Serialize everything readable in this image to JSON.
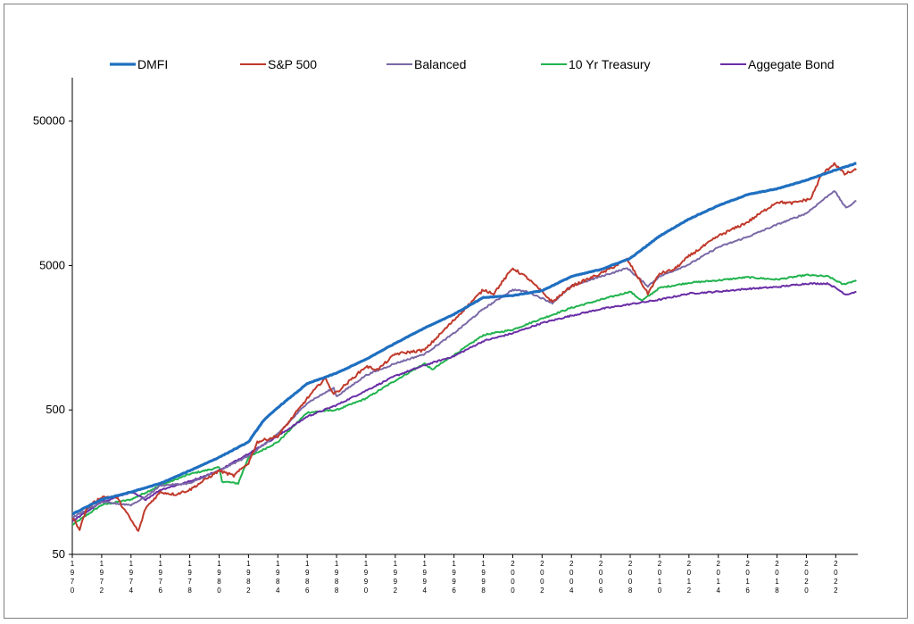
{
  "chart_data": {
    "type": "line",
    "title": "",
    "xlabel": "",
    "ylabel": "",
    "y_scale": "log",
    "ylim": [
      50,
      100000
    ],
    "xlim": [
      1970,
      2023.5
    ],
    "yticks": [
      50,
      500,
      5000,
      50000
    ],
    "ytick_labels": [
      "50",
      "500",
      "5000",
      "50000"
    ],
    "xticks": [
      1970,
      1972,
      1974,
      1976,
      1978,
      1980,
      1982,
      1984,
      1986,
      1988,
      1990,
      1992,
      1994,
      1996,
      1998,
      2000,
      2002,
      2004,
      2006,
      2008,
      2010,
      2012,
      2014,
      2016,
      2018,
      2020,
      2022
    ],
    "xtick_labels": [
      "1970",
      "1972",
      "1974",
      "1976",
      "1978",
      "1980",
      "1982",
      "1984",
      "1986",
      "1988",
      "1990",
      "1992",
      "1994",
      "1996",
      "1998",
      "2000",
      "2002",
      "2004",
      "2006",
      "2008",
      "2010",
      "2012",
      "2014",
      "2016",
      "2018",
      "2020",
      "2022"
    ],
    "grid": false,
    "legend_position": "top",
    "series": [
      {
        "name": "DMFI",
        "color": "#1f6fc0",
        "x": [
          1970,
          1972,
          1974,
          1976,
          1978,
          1980,
          1982,
          1983,
          1984,
          1986,
          1988,
          1990,
          1992,
          1994,
          1996,
          1998,
          2000,
          2002,
          2004,
          2006,
          2008,
          2010,
          2012,
          2014,
          2016,
          2018,
          2020,
          2022,
          2023.4
        ],
        "y": [
          95,
          120,
          135,
          155,
          190,
          235,
          300,
          420,
          520,
          760,
          900,
          1120,
          1450,
          1850,
          2300,
          3000,
          3100,
          3350,
          4200,
          4700,
          5600,
          8000,
          10500,
          13000,
          15500,
          17000,
          19500,
          23000,
          25500
        ]
      },
      {
        "name": "S&P 500",
        "color": "#c0392b",
        "x": [
          1970,
          1970.5,
          1971,
          1972,
          1973,
          1974.5,
          1975,
          1976,
          1977,
          1978,
          1980,
          1981,
          1982,
          1982.6,
          1984,
          1986,
          1987.2,
          1987.8,
          1988,
          1990,
          1990.8,
          1992,
          1994,
          1996,
          1998,
          1998.7,
          2000,
          2001,
          2002.7,
          2004,
          2006,
          2007.8,
          2009.2,
          2010,
          2011,
          2012,
          2014,
          2016,
          2018,
          2019,
          2020.3,
          2021,
          2021.9,
          2022.6,
          2023.4
        ],
        "y": [
          90,
          75,
          105,
          125,
          125,
          72,
          105,
          135,
          130,
          140,
          190,
          175,
          215,
          300,
          330,
          600,
          830,
          650,
          660,
          1000,
          950,
          1220,
          1300,
          2100,
          3400,
          3200,
          4800,
          4100,
          2800,
          3600,
          4400,
          5500,
          3200,
          4400,
          4700,
          5800,
          8000,
          10000,
          13800,
          13500,
          14500,
          21000,
          25500,
          21500,
          23000
        ]
      },
      {
        "name": "Balanced",
        "color": "#7a68a6",
        "x": [
          1970,
          1972,
          1974,
          1975,
          1976,
          1978,
          1980,
          1982,
          1984,
          1986,
          1987.8,
          1988,
          1990,
          1992,
          1994,
          1996,
          1998,
          2000,
          2001,
          2002.7,
          2004,
          2006,
          2007.8,
          2009.2,
          2010,
          2012,
          2014,
          2016,
          2018,
          2020,
          2021.9,
          2022.7,
          2023.4
        ],
        "y": [
          90,
          115,
          110,
          125,
          150,
          155,
          190,
          240,
          340,
          560,
          710,
          620,
          870,
          1050,
          1220,
          1700,
          2500,
          3400,
          3300,
          2750,
          3600,
          4200,
          4800,
          3600,
          4200,
          5100,
          6700,
          7900,
          9600,
          11500,
          16500,
          12500,
          14000
        ]
      },
      {
        "name": "10 Yr Treasury",
        "color": "#21b34e",
        "x": [
          1970,
          1972,
          1974,
          1976,
          1978,
          1980,
          1980.2,
          1981.3,
          1982,
          1984,
          1986,
          1988,
          1990,
          1992,
          1994,
          1994.5,
          1996,
          1998,
          2000,
          2002,
          2004,
          2006,
          2008,
          2008.8,
          2010,
          2012,
          2014,
          2016,
          2018,
          2020,
          2021.5,
          2022.5,
          2023.4
        ],
        "y": [
          80,
          110,
          120,
          150,
          180,
          200,
          160,
          155,
          235,
          300,
          480,
          500,
          600,
          800,
          1050,
          950,
          1200,
          1650,
          1800,
          2150,
          2550,
          2900,
          3300,
          2850,
          3500,
          3800,
          3950,
          4150,
          4000,
          4300,
          4200,
          3700,
          3950
        ]
      },
      {
        "name": "Aggegate Bond",
        "color": "#6a2ea6",
        "x": [
          1970,
          1972,
          1974,
          1975,
          1976,
          1978,
          1980,
          1982,
          1984,
          1986,
          1988,
          1990,
          1992,
          1994,
          1996,
          1998,
          2000,
          2002,
          2004,
          2006,
          2008,
          2010,
          2012,
          2014,
          2016,
          2018,
          2020,
          2021.5,
          2022.7,
          2023.4
        ],
        "y": [
          85,
          115,
          135,
          120,
          140,
          160,
          190,
          250,
          330,
          450,
          540,
          680,
          860,
          1020,
          1180,
          1500,
          1700,
          2000,
          2250,
          2500,
          2700,
          2900,
          3200,
          3300,
          3450,
          3550,
          3750,
          3750,
          3150,
          3300
        ]
      }
    ]
  }
}
